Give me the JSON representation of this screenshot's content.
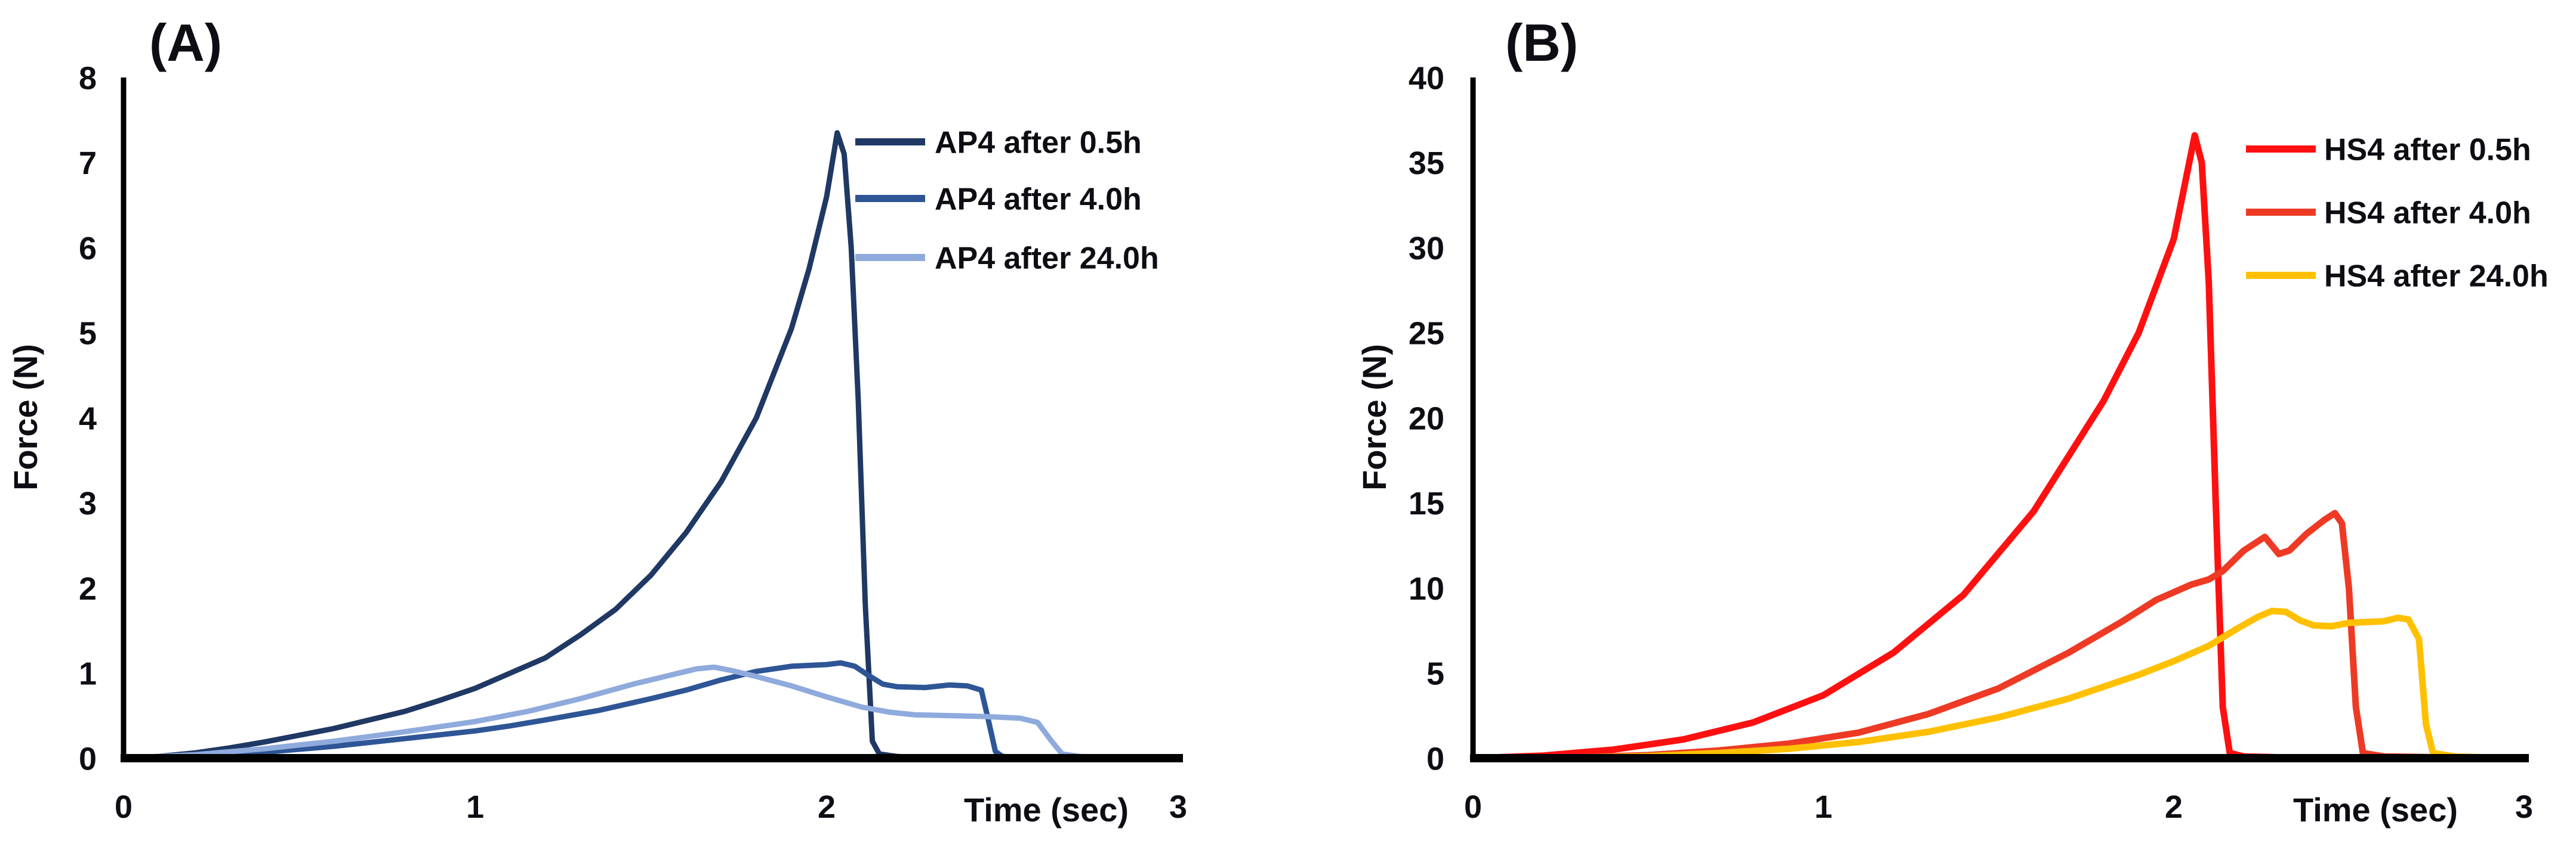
{
  "page": {
    "background": "#ffffff",
    "text_color": "#0d0d14",
    "axis_color": "#000000"
  },
  "chart_data": [
    {
      "type": "line",
      "panel_label": "(A)",
      "xlabel": "Time (sec)",
      "ylabel": "Force (N)",
      "xlim": [
        0,
        3
      ],
      "ylim": [
        0,
        8
      ],
      "x_ticks": [
        0,
        1,
        2,
        3
      ],
      "y_ticks": [
        0,
        1,
        2,
        3,
        4,
        5,
        6,
        7,
        8
      ],
      "grid": false,
      "legend_position": "top-right",
      "series": [
        {
          "name": "AP4 after 0.5h",
          "color": "#1f3864",
          "peak_force_n": 7.35,
          "peak_time_s": 2.03,
          "points": [
            [
              0,
              0
            ],
            [
              0.1,
              0.02
            ],
            [
              0.2,
              0.06
            ],
            [
              0.3,
              0.12
            ],
            [
              0.4,
              0.19
            ],
            [
              0.5,
              0.27
            ],
            [
              0.6,
              0.35
            ],
            [
              0.7,
              0.45
            ],
            [
              0.8,
              0.55
            ],
            [
              0.9,
              0.68
            ],
            [
              1.0,
              0.82
            ],
            [
              1.1,
              1.0
            ],
            [
              1.2,
              1.18
            ],
            [
              1.3,
              1.45
            ],
            [
              1.4,
              1.75
            ],
            [
              1.5,
              2.15
            ],
            [
              1.6,
              2.65
            ],
            [
              1.7,
              3.25
            ],
            [
              1.8,
              4.0
            ],
            [
              1.9,
              5.05
            ],
            [
              1.95,
              5.75
            ],
            [
              2.0,
              6.6
            ],
            [
              2.03,
              7.35
            ],
            [
              2.05,
              7.1
            ],
            [
              2.07,
              6.0
            ],
            [
              2.09,
              4.2
            ],
            [
              2.11,
              1.8
            ],
            [
              2.13,
              0.2
            ],
            [
              2.15,
              0.05
            ],
            [
              2.2,
              0.02
            ],
            [
              2.24,
              0.01
            ]
          ]
        },
        {
          "name": "AP4 after 4.0h",
          "color": "#2e5596",
          "peak_force_n": 1.12,
          "peak_time_s": 2.04,
          "points": [
            [
              0,
              0
            ],
            [
              0.2,
              0.02
            ],
            [
              0.4,
              0.07
            ],
            [
              0.6,
              0.14
            ],
            [
              0.8,
              0.23
            ],
            [
              1.0,
              0.32
            ],
            [
              1.1,
              0.38
            ],
            [
              1.2,
              0.45
            ],
            [
              1.35,
              0.56
            ],
            [
              1.5,
              0.7
            ],
            [
              1.6,
              0.8
            ],
            [
              1.7,
              0.92
            ],
            [
              1.8,
              1.02
            ],
            [
              1.9,
              1.08
            ],
            [
              2.0,
              1.1
            ],
            [
              2.04,
              1.12
            ],
            [
              2.08,
              1.08
            ],
            [
              2.12,
              0.97
            ],
            [
              2.16,
              0.87
            ],
            [
              2.2,
              0.84
            ],
            [
              2.28,
              0.83
            ],
            [
              2.35,
              0.86
            ],
            [
              2.4,
              0.85
            ],
            [
              2.44,
              0.8
            ],
            [
              2.46,
              0.45
            ],
            [
              2.48,
              0.08
            ],
            [
              2.5,
              0.02
            ],
            [
              2.55,
              0.01
            ]
          ]
        },
        {
          "name": "AP4 after 24.0h",
          "color": "#8faadc",
          "peak_force_n": 1.07,
          "peak_time_s": 1.68,
          "points": [
            [
              0,
              0
            ],
            [
              0.2,
              0.04
            ],
            [
              0.4,
              0.11
            ],
            [
              0.6,
              0.2
            ],
            [
              0.8,
              0.31
            ],
            [
              1.0,
              0.43
            ],
            [
              1.15,
              0.55
            ],
            [
              1.3,
              0.7
            ],
            [
              1.45,
              0.87
            ],
            [
              1.55,
              0.97
            ],
            [
              1.63,
              1.05
            ],
            [
              1.68,
              1.07
            ],
            [
              1.73,
              1.03
            ],
            [
              1.8,
              0.96
            ],
            [
              1.9,
              0.85
            ],
            [
              2.0,
              0.72
            ],
            [
              2.1,
              0.6
            ],
            [
              2.18,
              0.54
            ],
            [
              2.25,
              0.51
            ],
            [
              2.35,
              0.5
            ],
            [
              2.45,
              0.49
            ],
            [
              2.55,
              0.47
            ],
            [
              2.6,
              0.42
            ],
            [
              2.64,
              0.2
            ],
            [
              2.67,
              0.05
            ],
            [
              2.72,
              0.02
            ],
            [
              2.8,
              0.01
            ]
          ]
        }
      ]
    },
    {
      "type": "line",
      "panel_label": "(B)",
      "xlabel": "Time (sec)",
      "ylabel": "Force (N)",
      "xlim": [
        0,
        3
      ],
      "ylim": [
        0,
        40
      ],
      "x_ticks": [
        0,
        1,
        2,
        3
      ],
      "y_ticks": [
        0,
        5,
        10,
        15,
        20,
        25,
        30,
        35,
        40
      ],
      "grid": false,
      "legend_position": "top-right",
      "series": [
        {
          "name": "HS4 after 0.5h",
          "color": "#fe1010",
          "peak_force_n": 36.6,
          "peak_time_s": 2.06,
          "points": [
            [
              0,
              0
            ],
            [
              0.2,
              0.15
            ],
            [
              0.4,
              0.5
            ],
            [
              0.6,
              1.1
            ],
            [
              0.8,
              2.1
            ],
            [
              1.0,
              3.7
            ],
            [
              1.2,
              6.2
            ],
            [
              1.4,
              9.6
            ],
            [
              1.6,
              14.5
            ],
            [
              1.8,
              21.0
            ],
            [
              1.9,
              25.0
            ],
            [
              2.0,
              30.5
            ],
            [
              2.06,
              36.6
            ],
            [
              2.08,
              35.0
            ],
            [
              2.1,
              28.0
            ],
            [
              2.12,
              15.0
            ],
            [
              2.14,
              3.0
            ],
            [
              2.16,
              0.3
            ],
            [
              2.2,
              0.1
            ],
            [
              2.3,
              0.05
            ]
          ]
        },
        {
          "name": "HS4 after 4.0h",
          "color": "#ee3a24",
          "peak_force_n": 14.4,
          "peak_time_s": 2.46,
          "points": [
            [
              0,
              0
            ],
            [
              0.3,
              0.05
            ],
            [
              0.5,
              0.18
            ],
            [
              0.7,
              0.45
            ],
            [
              0.9,
              0.85
            ],
            [
              1.1,
              1.5
            ],
            [
              1.3,
              2.6
            ],
            [
              1.5,
              4.1
            ],
            [
              1.7,
              6.2
            ],
            [
              1.85,
              8.0
            ],
            [
              1.95,
              9.3
            ],
            [
              2.05,
              10.2
            ],
            [
              2.1,
              10.5
            ],
            [
              2.14,
              11.0
            ],
            [
              2.2,
              12.2
            ],
            [
              2.26,
              13.0
            ],
            [
              2.3,
              12.0
            ],
            [
              2.33,
              12.2
            ],
            [
              2.38,
              13.2
            ],
            [
              2.43,
              14.0
            ],
            [
              2.46,
              14.4
            ],
            [
              2.48,
              13.8
            ],
            [
              2.5,
              10.0
            ],
            [
              2.52,
              3.0
            ],
            [
              2.54,
              0.3
            ],
            [
              2.6,
              0.1
            ],
            [
              2.75,
              0.05
            ]
          ]
        },
        {
          "name": "HS4 after 24.0h",
          "color": "#ffc000",
          "peak_force_n": 8.65,
          "peak_time_s": 2.28,
          "points": [
            [
              0,
              0
            ],
            [
              0.3,
              0.04
            ],
            [
              0.5,
              0.12
            ],
            [
              0.7,
              0.3
            ],
            [
              0.9,
              0.55
            ],
            [
              1.1,
              0.95
            ],
            [
              1.3,
              1.55
            ],
            [
              1.5,
              2.4
            ],
            [
              1.7,
              3.5
            ],
            [
              1.9,
              4.9
            ],
            [
              2.0,
              5.7
            ],
            [
              2.1,
              6.6
            ],
            [
              2.18,
              7.6
            ],
            [
              2.24,
              8.3
            ],
            [
              2.28,
              8.65
            ],
            [
              2.32,
              8.6
            ],
            [
              2.36,
              8.1
            ],
            [
              2.4,
              7.8
            ],
            [
              2.45,
              7.75
            ],
            [
              2.5,
              7.95
            ],
            [
              2.55,
              8.0
            ],
            [
              2.6,
              8.05
            ],
            [
              2.64,
              8.25
            ],
            [
              2.67,
              8.15
            ],
            [
              2.7,
              7.0
            ],
            [
              2.72,
              2.0
            ],
            [
              2.74,
              0.3
            ],
            [
              2.8,
              0.1
            ],
            [
              2.88,
              0.05
            ]
          ]
        }
      ]
    }
  ]
}
